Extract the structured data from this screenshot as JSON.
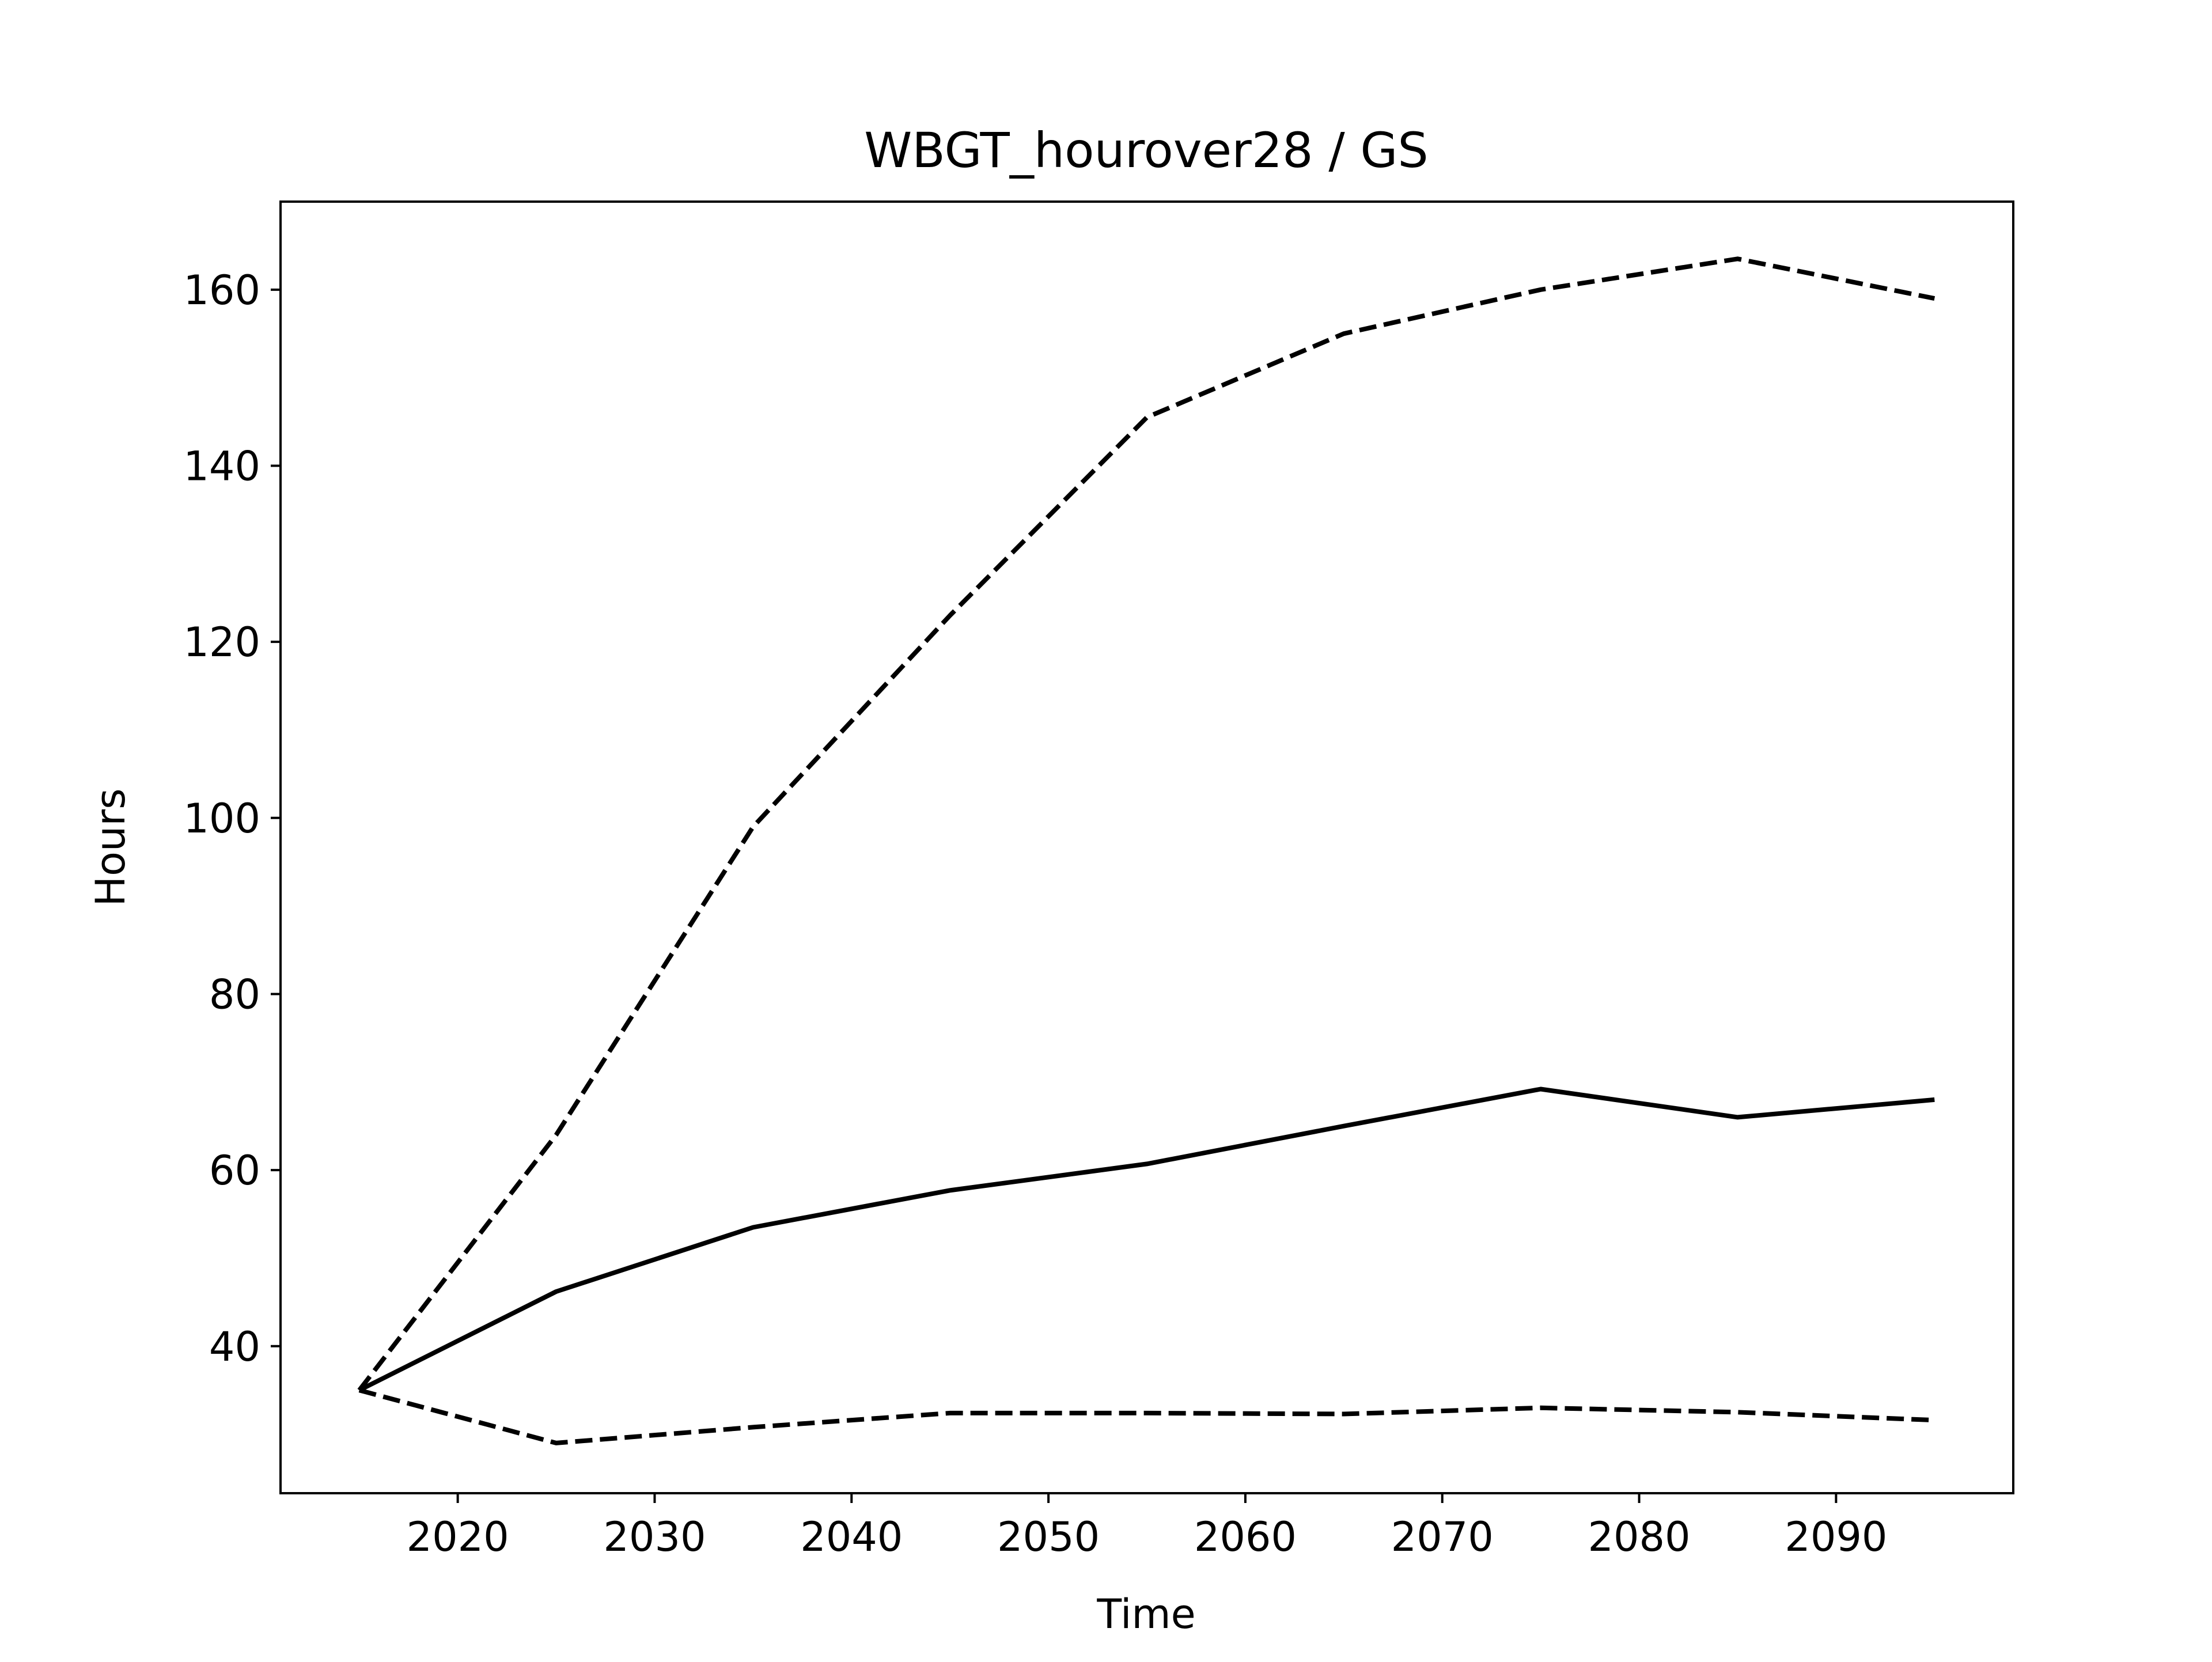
{
  "chart_data": {
    "type": "line",
    "title": "WBGT_hourover28 / GS",
    "xlabel": "Time",
    "ylabel": "Hours",
    "xlim": [
      2011,
      2099
    ],
    "ylim": [
      23.3,
      170
    ],
    "x_ticks": [
      2020,
      2030,
      2040,
      2050,
      2060,
      2070,
      2080,
      2090
    ],
    "y_ticks": [
      40,
      60,
      80,
      100,
      120,
      140,
      160
    ],
    "grid": false,
    "legend": "none",
    "x": [
      2015,
      2025,
      2035,
      2045,
      2055,
      2065,
      2075,
      2085,
      2095
    ],
    "series": [
      {
        "style": "solid",
        "color": "#000000",
        "values": [
          35,
          46.2,
          53.5,
          57.7,
          60.7,
          65,
          69.2,
          66,
          68
        ]
      },
      {
        "style": "dashed",
        "color": "#000000",
        "values": [
          35,
          64,
          99,
          123,
          145.5,
          155,
          160,
          163.5,
          159
        ]
      },
      {
        "style": "dashed",
        "color": "#000000",
        "values": [
          35,
          29,
          30.8,
          32.4,
          32.4,
          32.3,
          33,
          32.5,
          31.6
        ]
      }
    ]
  }
}
